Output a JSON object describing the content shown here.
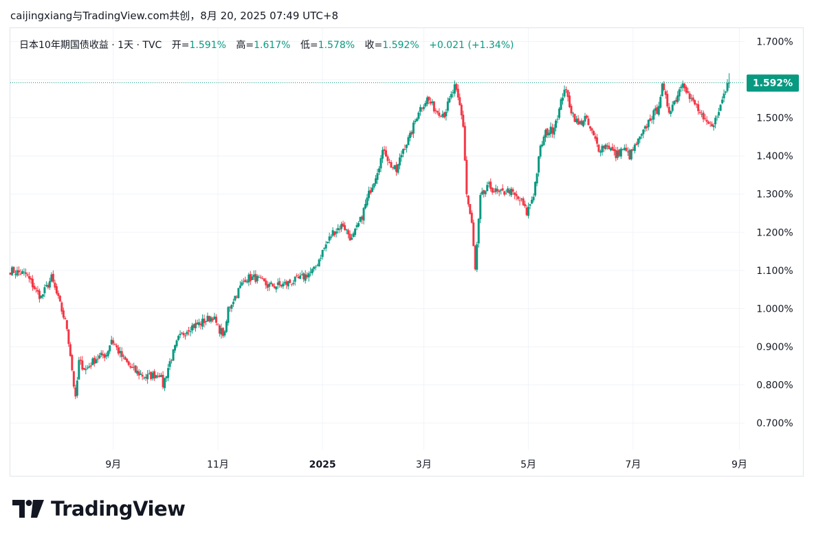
{
  "header": {
    "source": "caijingxiang与TradingView.com共创，8月 20, 2025 07:49 UTC+8"
  },
  "legend": {
    "symbol": "日本10年期国债收益 · 1天 · TVC",
    "open_label": "开=",
    "open": "1.591%",
    "high_label": "高=",
    "high": "1.617%",
    "low_label": "低=",
    "low": "1.578%",
    "close_label": "收=",
    "close": "1.592%",
    "change": "+0.021 (+1.34%)"
  },
  "last_price_tag": "1.592%",
  "logo": {
    "text": "TradingView"
  },
  "colors": {
    "up": "#089981",
    "down": "#f23645",
    "grid": "#f0f3fa",
    "tag": "#089981"
  },
  "chart_data": {
    "type": "candlestick",
    "title": "日本10年期国债收益 · 1天 · TVC",
    "y_unit": "%",
    "ylim": [
      0.63,
      1.735
    ],
    "y_ticks": [
      "1.700%",
      "1.600%",
      "1.500%",
      "1.400%",
      "1.300%",
      "1.200%",
      "1.100%",
      "1.000%",
      "0.900%",
      "0.800%",
      "0.700%"
    ],
    "y_tick_values": [
      1.7,
      1.6,
      1.5,
      1.4,
      1.3,
      1.2,
      1.1,
      1.0,
      0.9,
      0.8,
      0.7
    ],
    "x_ticks": [
      {
        "label": "9月",
        "day": 106
      },
      {
        "label": "11月",
        "day": 167
      },
      {
        "label": "2025",
        "day": 228
      },
      {
        "label": "3月",
        "day": 287
      },
      {
        "label": "5月",
        "day": 348
      },
      {
        "label": "7月",
        "day": 409
      },
      {
        "label": "9月",
        "day": 471
      }
    ],
    "x_range_days": [
      46,
      474
    ],
    "anchors": [
      [
        46,
        1.1
      ],
      [
        55,
        1.09
      ],
      [
        62,
        1.04
      ],
      [
        64,
        1.03
      ],
      [
        70,
        1.08
      ],
      [
        75,
        1.01
      ],
      [
        79,
        0.95
      ],
      [
        81,
        0.88
      ],
      [
        84,
        0.76
      ],
      [
        86,
        0.86
      ],
      [
        90,
        0.84
      ],
      [
        96,
        0.87
      ],
      [
        102,
        0.88
      ],
      [
        105,
        0.92
      ],
      [
        110,
        0.88
      ],
      [
        117,
        0.84
      ],
      [
        125,
        0.82
      ],
      [
        133,
        0.83
      ],
      [
        135,
        0.8
      ],
      [
        139,
        0.86
      ],
      [
        144,
        0.92
      ],
      [
        150,
        0.95
      ],
      [
        156,
        0.96
      ],
      [
        160,
        0.97
      ],
      [
        164,
        0.98
      ],
      [
        167,
        0.95
      ],
      [
        171,
        0.93
      ],
      [
        173,
        1.0
      ],
      [
        178,
        1.04
      ],
      [
        183,
        1.08
      ],
      [
        189,
        1.08
      ],
      [
        196,
        1.06
      ],
      [
        203,
        1.06
      ],
      [
        210,
        1.07
      ],
      [
        216,
        1.08
      ],
      [
        219,
        1.09
      ],
      [
        223,
        1.1
      ],
      [
        228,
        1.15
      ],
      [
        234,
        1.2
      ],
      [
        240,
        1.22
      ],
      [
        245,
        1.18
      ],
      [
        250,
        1.23
      ],
      [
        255,
        1.3
      ],
      [
        259,
        1.35
      ],
      [
        264,
        1.42
      ],
      [
        267,
        1.38
      ],
      [
        271,
        1.36
      ],
      [
        275,
        1.42
      ],
      [
        279,
        1.45
      ],
      [
        284,
        1.52
      ],
      [
        289,
        1.55
      ],
      [
        294,
        1.52
      ],
      [
        299,
        1.51
      ],
      [
        305,
        1.58
      ],
      [
        308,
        1.53
      ],
      [
        310,
        1.48
      ],
      [
        312,
        1.3
      ],
      [
        315,
        1.22
      ],
      [
        317,
        1.1
      ],
      [
        320,
        1.29
      ],
      [
        325,
        1.32
      ],
      [
        331,
        1.3
      ],
      [
        337,
        1.31
      ],
      [
        341,
        1.29
      ],
      [
        344,
        1.28
      ],
      [
        347,
        1.25
      ],
      [
        351,
        1.3
      ],
      [
        355,
        1.42
      ],
      [
        358,
        1.46
      ],
      [
        362,
        1.47
      ],
      [
        366,
        1.52
      ],
      [
        369,
        1.58
      ],
      [
        373,
        1.52
      ],
      [
        377,
        1.48
      ],
      [
        381,
        1.5
      ],
      [
        385,
        1.46
      ],
      [
        389,
        1.42
      ],
      [
        394,
        1.43
      ],
      [
        399,
        1.4
      ],
      [
        403,
        1.42
      ],
      [
        407,
        1.4
      ],
      [
        411,
        1.43
      ],
      [
        415,
        1.46
      ],
      [
        419,
        1.5
      ],
      [
        423,
        1.52
      ],
      [
        426,
        1.58
      ],
      [
        430,
        1.52
      ],
      [
        434,
        1.55
      ],
      [
        438,
        1.6
      ],
      [
        442,
        1.55
      ],
      [
        446,
        1.53
      ],
      [
        450,
        1.49
      ],
      [
        454,
        1.48
      ],
      [
        458,
        1.5
      ],
      [
        461,
        1.55
      ],
      [
        464,
        1.591
      ]
    ],
    "last_candle": {
      "open": 1.591,
      "high": 1.617,
      "low": 1.578,
      "close": 1.592
    },
    "last_value": 1.592
  }
}
